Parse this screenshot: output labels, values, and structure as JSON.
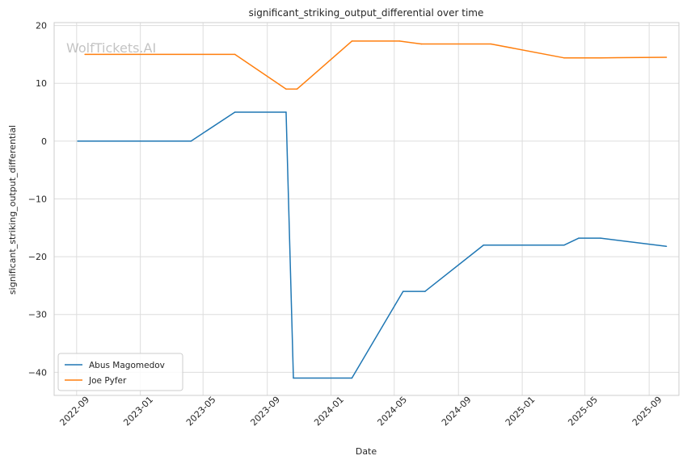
{
  "chart_data": {
    "type": "line",
    "title": "significant_striking_output_differential over time",
    "xlabel": "Date",
    "ylabel": "significant_striking_output_differential",
    "watermark": "WolfTickets.AI",
    "xlim": [
      "2022-07-20",
      "2025-10-28"
    ],
    "ylim": [
      -44,
      20.5
    ],
    "x_ticks": [
      "2022-09",
      "2023-01",
      "2023-05",
      "2023-09",
      "2024-01",
      "2024-05",
      "2024-09",
      "2025-01",
      "2025-05",
      "2025-09"
    ],
    "y_ticks": [
      20,
      10,
      0,
      -10,
      -20,
      -30,
      -40
    ],
    "grid": true,
    "legend_position": "lower-left",
    "series": [
      {
        "name": "Abus Magomedov",
        "color": "#1f77b4",
        "points": [
          {
            "x": "2022-09-03",
            "y": 0
          },
          {
            "x": "2023-04-08",
            "y": 0
          },
          {
            "x": "2023-07-01",
            "y": 5
          },
          {
            "x": "2023-10-07",
            "y": 5
          },
          {
            "x": "2023-10-21",
            "y": -41
          },
          {
            "x": "2024-02-10",
            "y": -41
          },
          {
            "x": "2024-05-18",
            "y": -26
          },
          {
            "x": "2024-06-29",
            "y": -26
          },
          {
            "x": "2024-10-19",
            "y": -18
          },
          {
            "x": "2025-03-22",
            "y": -18
          },
          {
            "x": "2025-04-19",
            "y": -16.8
          },
          {
            "x": "2025-05-31",
            "y": -16.8
          },
          {
            "x": "2025-10-04",
            "y": -18.2
          }
        ]
      },
      {
        "name": "Joe Pyfer",
        "color": "#ff7f0e",
        "points": [
          {
            "x": "2022-09-17",
            "y": 15
          },
          {
            "x": "2023-07-01",
            "y": 15
          },
          {
            "x": "2023-10-07",
            "y": 9
          },
          {
            "x": "2023-10-28",
            "y": 9
          },
          {
            "x": "2024-02-10",
            "y": 17.3
          },
          {
            "x": "2024-05-11",
            "y": 17.3
          },
          {
            "x": "2024-06-22",
            "y": 16.8
          },
          {
            "x": "2024-11-02",
            "y": 16.8
          },
          {
            "x": "2025-03-22",
            "y": 14.4
          },
          {
            "x": "2025-05-31",
            "y": 14.4
          },
          {
            "x": "2025-10-04",
            "y": 14.5
          }
        ]
      }
    ]
  }
}
